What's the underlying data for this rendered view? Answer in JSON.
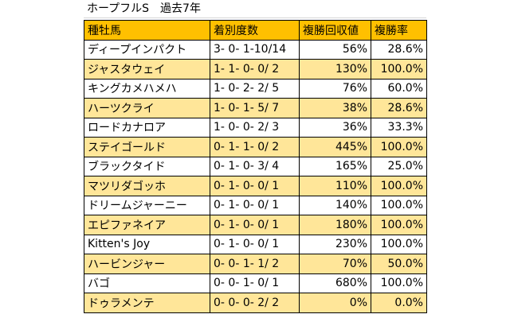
{
  "title": "ホープフルS　過去7年",
  "headers": [
    "種牡馬",
    "着別度数",
    "複勝回収値",
    "複勝率"
  ],
  "rows": [
    {
      "sire": "ディープインパクト",
      "record": "3- 0- 1-10/14",
      "return": "56%",
      "rate": "28.6%",
      "highlight": false
    },
    {
      "sire": "ジャスタウェイ",
      "record": "1- 1- 0- 0/ 2",
      "return": "130%",
      "rate": "100.0%",
      "highlight": true
    },
    {
      "sire": "キングカメハメハ",
      "record": "1- 0- 2- 2/ 5",
      "return": "76%",
      "rate": "60.0%",
      "highlight": false
    },
    {
      "sire": "ハーツクライ",
      "record": "1- 0- 1- 5/ 7",
      "return": "38%",
      "rate": "28.6%",
      "highlight": true
    },
    {
      "sire": "ロードカナロア",
      "record": "1- 0- 0- 2/ 3",
      "return": "36%",
      "rate": "33.3%",
      "highlight": false
    },
    {
      "sire": "ステイゴールド",
      "record": "0- 1- 1- 0/ 2",
      "return": "445%",
      "rate": "100.0%",
      "highlight": true
    },
    {
      "sire": "ブラックタイド",
      "record": "0- 1- 0- 3/ 4",
      "return": "165%",
      "rate": "25.0%",
      "highlight": false
    },
    {
      "sire": "マツリダゴッホ",
      "record": "0- 1- 0- 0/ 1",
      "return": "110%",
      "rate": "100.0%",
      "highlight": true
    },
    {
      "sire": "ドリームジャーニー",
      "record": "0- 1- 0- 0/ 1",
      "return": "140%",
      "rate": "100.0%",
      "highlight": false
    },
    {
      "sire": "エピファネイア",
      "record": "0- 1- 0- 0/ 1",
      "return": "180%",
      "rate": "100.0%",
      "highlight": true
    },
    {
      "sire": "Kitten's Joy",
      "record": "0- 1- 0- 0/ 1",
      "return": "230%",
      "rate": "100.0%",
      "highlight": false
    },
    {
      "sire": "ハービンジャー",
      "record": "0- 0- 1- 1/ 2",
      "return": "70%",
      "rate": "50.0%",
      "highlight": true
    },
    {
      "sire": "バゴ",
      "record": "0- 0- 1- 0/ 1",
      "return": "680%",
      "rate": "100.0%",
      "highlight": false
    },
    {
      "sire": "ドゥラメンテ",
      "record": "0- 0- 0- 2/ 2",
      "return": "0%",
      "rate": "0.0%",
      "highlight": true
    }
  ],
  "colors": {
    "header": "#ffc000",
    "highlight_row": "#ffe699"
  }
}
